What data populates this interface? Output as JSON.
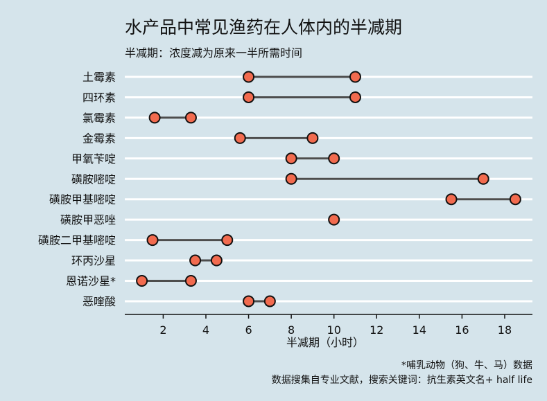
{
  "title": "水产品中常见渔药在人体内的半减期",
  "subtitle": "半减期：浓度减为原来一半所需时间",
  "notes": {
    "line1": "*哺乳动物（狗、牛、马）数据",
    "line2": "数据搜集自专业文献，搜索关键词：抗生素英文名+ half life"
  },
  "colors": {
    "background": "#d5e4eb",
    "gridline": "#ffffff",
    "segment": "#4d4d4d",
    "point_fill": "#f26b4f",
    "point_stroke": "#111111"
  },
  "chart_data": {
    "type": "dumbbell",
    "title": "水产品中常见渔药在人体内的半减期",
    "subtitle": "半减期：浓度减为原来一半所需时间",
    "xlabel": "半减期（小时）",
    "ylabel": "",
    "xlim": [
      0.2,
      19.3
    ],
    "xticks": [
      2,
      4,
      6,
      8,
      10,
      12,
      14,
      16,
      18
    ],
    "grid": "horizontal",
    "categories": [
      "土霉素",
      "四环素",
      "氯霉素",
      "金霉素",
      "甲氧苄啶",
      "磺胺嘧啶",
      "磺胺甲基嘧啶",
      "磺胺甲恶唑",
      "磺胺二甲基嘧啶",
      "环丙沙星",
      "恩诺沙星*",
      "恶喹酸"
    ],
    "ranges": [
      [
        6,
        11
      ],
      [
        6,
        11
      ],
      [
        1.6,
        3.3
      ],
      [
        5.6,
        9
      ],
      [
        8,
        10
      ],
      [
        8,
        17
      ],
      [
        15.5,
        18.5
      ],
      [
        10,
        10
      ],
      [
        1.5,
        5
      ],
      [
        3.5,
        4.5
      ],
      [
        1,
        3.3
      ],
      [
        6,
        7
      ]
    ]
  }
}
